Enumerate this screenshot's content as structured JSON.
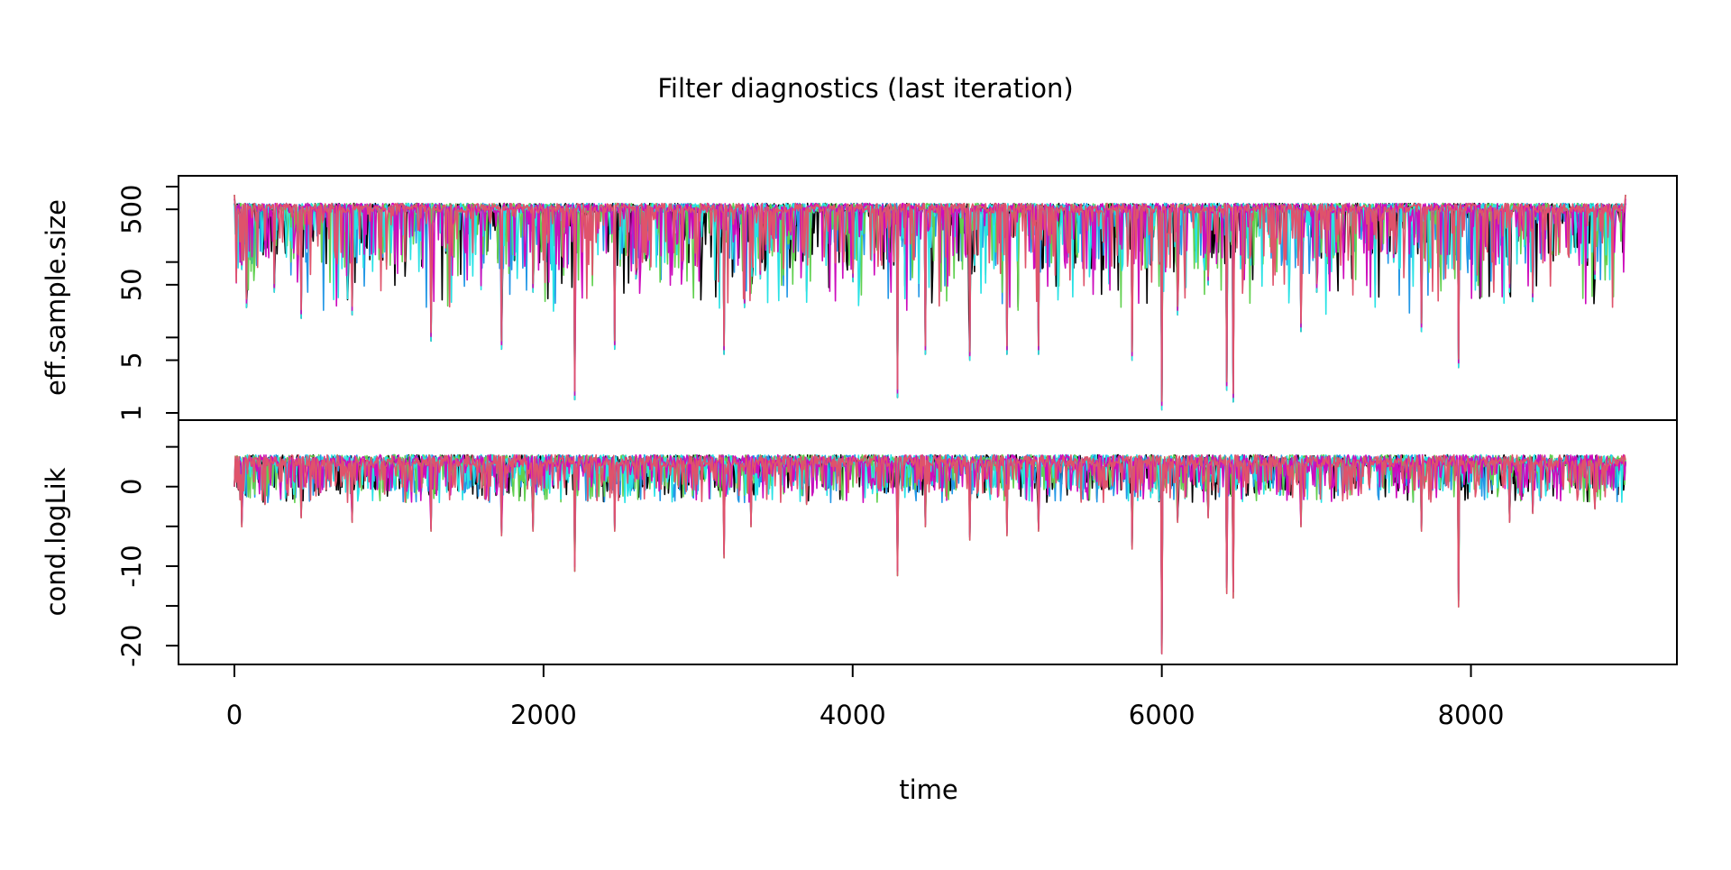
{
  "chart_data": [
    {
      "type": "line",
      "panel": "top",
      "title": "Filter diagnostics (last iteration)",
      "ylabel": "eff.sample.size",
      "xlabel": "",
      "y_scale": "log",
      "ylim": [
        1,
        1000
      ],
      "y_ticks": [
        1,
        5,
        50,
        500
      ],
      "y_tick_labels": [
        "1",
        "5",
        "50",
        "500"
      ],
      "y_minor_ticks": [
        10,
        100,
        1000
      ],
      "x_range": [
        0,
        9000
      ],
      "grid": false,
      "legend": "none",
      "series_colors": [
        "#000000",
        "#2297E6",
        "#61D04F",
        "#28E2E5",
        "#CD0BBC",
        "#DF536B"
      ],
      "series": [
        {
          "values_note": "",
          "x": [
            0,
            50,
            80,
            200,
            260,
            430,
            760,
            1270,
            1730,
            1930,
            2200,
            2460,
            2600,
            2900,
            3170,
            3300,
            3400,
            3600,
            4000,
            4290,
            4470,
            4760,
            5000,
            5200,
            5500,
            5810,
            6000,
            6100,
            6300,
            6420,
            6460,
            6900,
            7000,
            7500,
            7680,
            7920,
            8100,
            8250,
            8400,
            8800,
            9000
          ],
          "y": [
            600,
            80,
            25,
            150,
            40,
            18,
            20,
            9,
            7,
            40,
            1.5,
            7,
            60,
            80,
            6,
            25,
            60,
            200,
            55,
            1.6,
            6,
            5,
            6,
            6,
            250,
            5,
            1.1,
            20,
            50,
            2,
            1.4,
            12,
            40,
            100,
            12,
            4,
            150,
            40,
            30,
            60,
            600
          ]
        }
      ]
    },
    {
      "type": "line",
      "panel": "bottom",
      "title": "",
      "ylabel": "cond.logLik",
      "xlabel": "time",
      "ylim": [
        -21,
        7
      ],
      "y_ticks": [
        -20,
        -10,
        0
      ],
      "y_tick_labels": [
        "-20",
        "-10",
        "0"
      ],
      "y_minor_ticks": [
        -15,
        -5,
        5
      ],
      "x_range": [
        0,
        9000
      ],
      "x_ticks": [
        0,
        2000,
        4000,
        6000,
        8000
      ],
      "x_tick_labels": [
        "0",
        "2000",
        "4000",
        "6000",
        "8000"
      ],
      "grid": false,
      "legend": "none",
      "series": [
        {
          "x": [
            0,
            50,
            200,
            430,
            760,
            1270,
            1730,
            1930,
            2200,
            2460,
            3170,
            3340,
            3700,
            4290,
            4470,
            4760,
            5000,
            5200,
            5810,
            6000,
            6100,
            6300,
            6420,
            6460,
            6900,
            7680,
            7920,
            8250,
            8400,
            8800,
            9000
          ],
          "y": [
            0,
            -4.5,
            -2,
            -3.5,
            -4,
            -5,
            -5.5,
            -5,
            -9.5,
            -5,
            -8,
            -4.5,
            -2,
            -10,
            -4.5,
            -6,
            -5.5,
            -5,
            -7,
            -20,
            -4,
            -3.5,
            -12,
            -12.5,
            -4.5,
            -5,
            -13.5,
            -4,
            -3,
            -2.5,
            3
          ]
        }
      ]
    }
  ]
}
